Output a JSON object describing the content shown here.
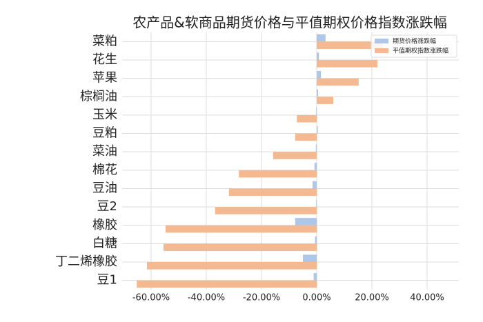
{
  "chart_data": {
    "type": "bar",
    "orientation": "horizontal",
    "title": "农产品&软商品期货价格与平值期权价格指数涨跌幅",
    "categories": [
      "菜粕",
      "花生",
      "苹果",
      "棕榈油",
      "玉米",
      "豆粕",
      "菜油",
      "棉花",
      "豆油",
      "豆2",
      "橡胶",
      "白糖",
      "丁二烯橡胶",
      "豆1"
    ],
    "series": [
      {
        "name": "期货价格涨跌幅",
        "color": "#aec7e8",
        "values": [
          3.2,
          0.8,
          1.5,
          0.5,
          -0.2,
          0.4,
          -0.3,
          -0.8,
          -1.5,
          -0.2,
          -7.8,
          -0.6,
          -5,
          -1.1
        ]
      },
      {
        "name": "平值期权指数涨跌幅",
        "color": "#f4b990",
        "values": [
          24,
          22,
          15.2,
          6,
          -7.2,
          -7.8,
          -15.8,
          -28.2,
          -31.8,
          -36.8,
          -54.8,
          -55.5,
          -61.5,
          -65.2
        ]
      }
    ],
    "xlim": [
      -70.5,
      51.5
    ],
    "xticks": [
      {
        "value": -60,
        "label": "-60.00%"
      },
      {
        "value": -40,
        "label": "-40.00%"
      },
      {
        "value": -20,
        "label": "-20.00%"
      },
      {
        "value": 0,
        "label": "0.00%"
      },
      {
        "value": 20,
        "label": "20.00%"
      },
      {
        "value": 40,
        "label": "40.00%"
      }
    ],
    "grid": true,
    "legend": "upper right"
  }
}
